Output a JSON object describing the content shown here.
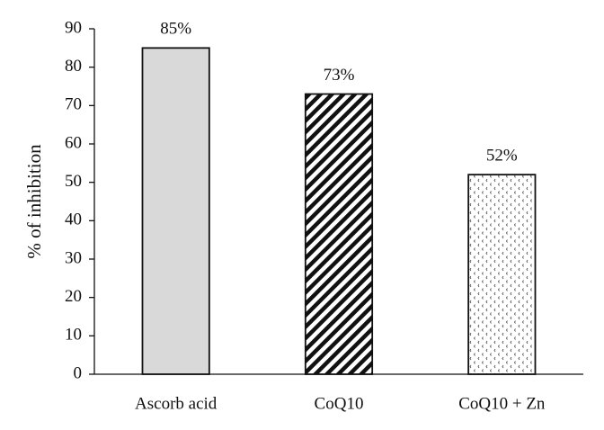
{
  "chart_data": {
    "type": "bar",
    "y_label": "% of inhibition",
    "categories": [
      "Ascorb acid",
      "CoQ10",
      "CoQ10 + Zn"
    ],
    "values": [
      85,
      73,
      52
    ],
    "value_labels": [
      "85%",
      "73%",
      "52%"
    ],
    "ylim": [
      0,
      90
    ],
    "yticks": [
      0,
      10,
      20,
      30,
      40,
      50,
      60,
      70,
      80,
      90
    ],
    "grid": false
  }
}
